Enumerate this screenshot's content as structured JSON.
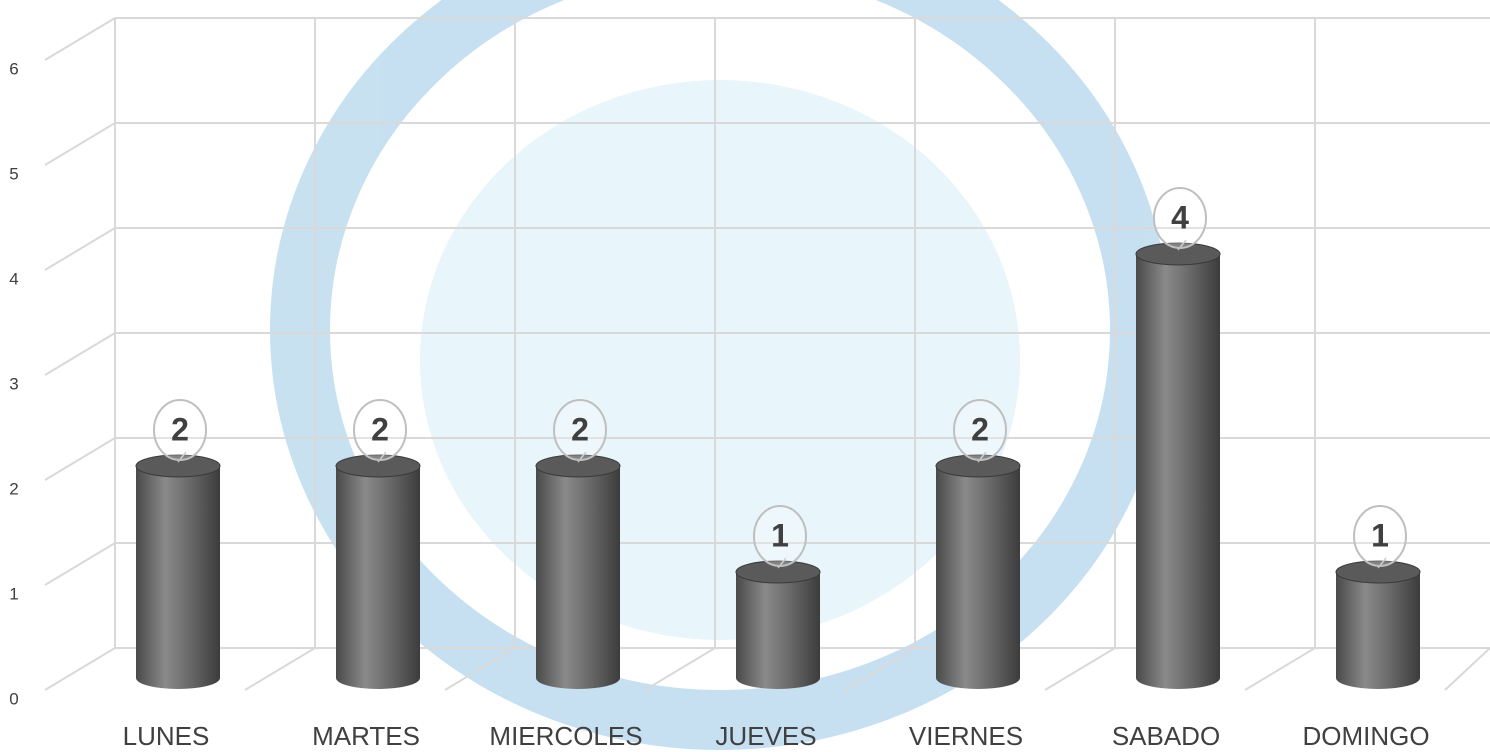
{
  "chart_data": {
    "type": "bar",
    "categories": [
      "LUNES",
      "MARTES",
      "MIERCOLES",
      "JUEVES",
      "VIERNES",
      "SABADO",
      "DOMINGO"
    ],
    "values": [
      2,
      2,
      2,
      1,
      2,
      4,
      1
    ],
    "color": "#6e6e6e",
    "ylim": [
      0,
      6
    ],
    "yticks": [
      0,
      1,
      2,
      3,
      4,
      5,
      6
    ],
    "grid": true
  }
}
